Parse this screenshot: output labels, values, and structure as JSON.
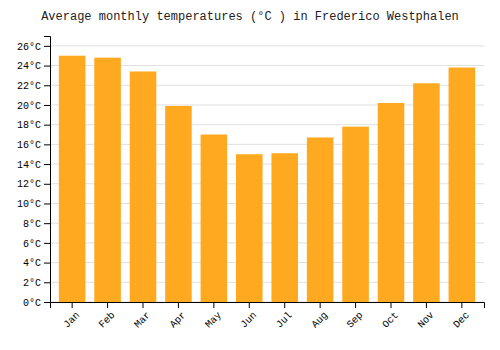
{
  "chart_data": {
    "type": "bar",
    "title": "Average monthly temperatures (°C ) in Frederico Westphalen",
    "categories": [
      "Jan",
      "Feb",
      "Mar",
      "Apr",
      "May",
      "Jun",
      "Jul",
      "Aug",
      "Sep",
      "Oct",
      "Nov",
      "Dec"
    ],
    "values": [
      25.0,
      24.8,
      23.4,
      19.9,
      17.0,
      15.0,
      15.1,
      16.7,
      17.8,
      20.2,
      22.2,
      23.8
    ],
    "color": "#FFA920",
    "ylim": [
      0,
      27
    ],
    "yticks": [
      {
        "value": 0,
        "label": "0°C"
      },
      {
        "value": 2,
        "label": "2°C"
      },
      {
        "value": 4,
        "label": "4°C"
      },
      {
        "value": 6,
        "label": "6°C"
      },
      {
        "value": 8,
        "label": "8°C"
      },
      {
        "value": 10,
        "label": "10°C"
      },
      {
        "value": 12,
        "label": "12°C"
      },
      {
        "value": 14,
        "label": "14°C"
      },
      {
        "value": 16,
        "label": "16°C"
      },
      {
        "value": 18,
        "label": "18°C"
      },
      {
        "value": 20,
        "label": "20°C"
      },
      {
        "value": 22,
        "label": "22°C"
      },
      {
        "value": 24,
        "label": "24°C"
      },
      {
        "value": 26,
        "label": "26°C"
      }
    ],
    "grid": true
  }
}
